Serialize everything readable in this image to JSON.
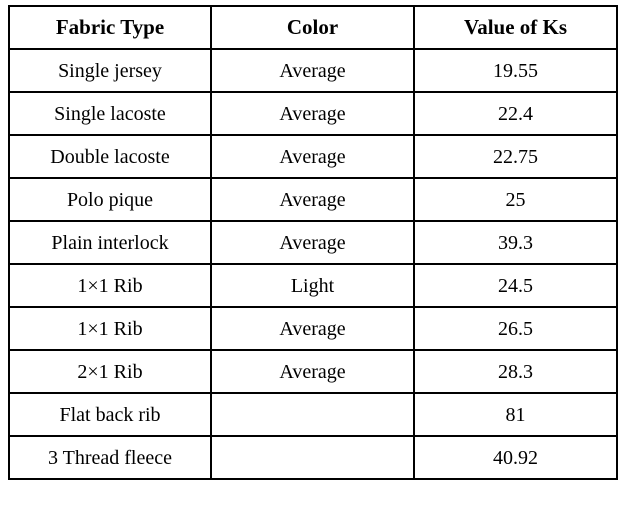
{
  "table": {
    "name": "fabric-ks-table",
    "headers": [
      "Fabric Type",
      "Color",
      "Value of Ks"
    ],
    "rows": [
      [
        "Single jersey",
        "Average",
        "19.55"
      ],
      [
        "Single lacoste",
        "Average",
        "22.4"
      ],
      [
        "Double lacoste",
        "Average",
        "22.75"
      ],
      [
        "Polo pique",
        "Average",
        "25"
      ],
      [
        "Plain interlock",
        "Average",
        "39.3"
      ],
      [
        "1×1 Rib",
        "Light",
        "24.5"
      ],
      [
        "1×1 Rib",
        "Average",
        "26.5"
      ],
      [
        "2×1 Rib",
        "Average",
        "28.3"
      ],
      [
        "Flat back rib",
        "",
        "81"
      ],
      [
        "3 Thread fleece",
        "",
        "40.92"
      ]
    ],
    "colors": {
      "border": "#000000",
      "background": "#ffffff",
      "text": "#000000"
    }
  }
}
